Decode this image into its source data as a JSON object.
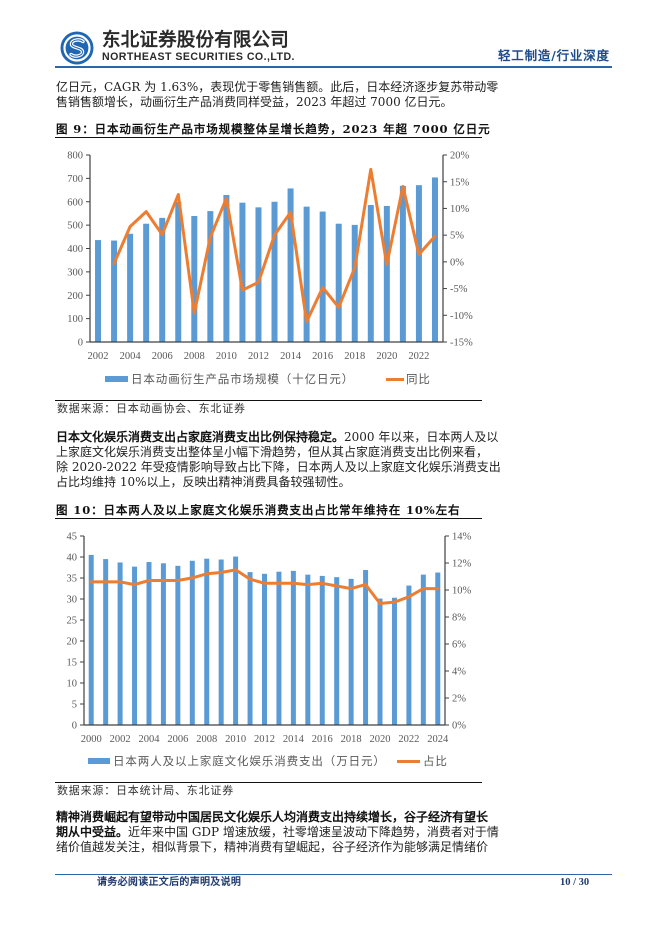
{
  "header": {
    "logo_icon": "northeast-securities-logo",
    "company_cn": "东北证券股份有限公司",
    "company_en": "NORTHEAST SECURITIES CO.,LTD.",
    "section": "轻工制造/行业深度",
    "brand_color": "#2a66a8"
  },
  "paragraphs": [
    {
      "lines": [
        {
          "bold": "",
          "text": "亿日元，CAGR 为 1.63%，表现优于零售销售额。此后，日本经济逐步复苏带动零"
        },
        {
          "bold": "",
          "text": "售销售额增长，动画衍生产品消费同样受益，2023 年超过 7000 亿日元。"
        }
      ]
    },
    {
      "lines": [
        {
          "bold": "日本文化娱乐消费支出占家庭消费支出比例保持稳定。",
          "text": "2000 年以来，日本两人及以"
        },
        {
          "bold": "",
          "text": "上家庭文化娱乐消费支出整体呈小幅下滑趋势，但从其占家庭消费支出比例来看，"
        },
        {
          "bold": "",
          "text": "除 2020-2022 年受疫情影响导致占比下降，日本两人及以上家庭文化娱乐消费支出"
        },
        {
          "bold": "",
          "text": "占比均维持 10%以上，反映出精神消费具备较强韧性。"
        }
      ]
    },
    {
      "lines": [
        {
          "bold": "精神消费崛起有望带动中国居民文化娱乐人均消费支出持续增长，谷子经济有望长",
          "text": ""
        },
        {
          "bold": "期从中受益。",
          "text": "近年来中国 GDP 增速放缓，社零增速呈波动下降趋势，消费者对于情"
        },
        {
          "bold": "",
          "text": "绪价值越发关注，相似背景下，精神消费有望崛起，谷子经济作为能够满足情绪价"
        }
      ]
    }
  ],
  "figures": [
    {
      "title": "图 9：日本动画衍生产品市场规模整体呈增长趋势，2023 年超 7000 亿日元",
      "legend": [
        "日本动画衍生产品市场规模（十亿日元）",
        "同比"
      ],
      "source": "数据来源：日本动画协会、东北证券"
    },
    {
      "title": "图 10：日本两人及以上家庭文化娱乐消费支出占比常年维持在 10%左右",
      "legend": [
        "日本两人及以上家庭文化娱乐消费支出（万日元）",
        "占比"
      ],
      "source": "数据来源：日本统计局、东北证券"
    }
  ],
  "footer": {
    "disclaimer": "请务必阅读正文后的声明及说明",
    "page": "10 / 30"
  },
  "chart_data": [
    {
      "type": "bar+line",
      "title": "图 9：日本动画衍生产品市场规模整体呈增长趋势，2023 年超 7000 亿日元",
      "categories": [
        "2002",
        "2003",
        "2004",
        "2005",
        "2006",
        "2007",
        "2008",
        "2009",
        "2010",
        "2011",
        "2012",
        "2013",
        "2014",
        "2015",
        "2016",
        "2017",
        "2018",
        "2019",
        "2020",
        "2021",
        "2022",
        "2023"
      ],
      "xtick_every": 2,
      "series": [
        {
          "name": "日本动画衍生产品市场规模（十亿日元）",
          "type": "bar",
          "axis": "left",
          "color": "#5b9bd5",
          "values": [
            436,
            434,
            463,
            506,
            531,
            600,
            539,
            560,
            629,
            596,
            576,
            600,
            657,
            579,
            558,
            506,
            501,
            586,
            582,
            668,
            671,
            704
          ]
        },
        {
          "name": "同比",
          "type": "line",
          "axis": "right",
          "color": "#ed7d31",
          "unit": "%",
          "values": [
            null,
            -0.3,
            6.6,
            9.4,
            5.1,
            12.6,
            -9.6,
            4.6,
            11.9,
            -5.3,
            -3.8,
            5.0,
            9.3,
            -11.2,
            -4.8,
            -8.5,
            -1.1,
            17.3,
            -0.5,
            14.1,
            1.4,
            4.8
          ]
        }
      ],
      "y_left": {
        "min": 0,
        "max": 800,
        "step": 100,
        "format": "{v}"
      },
      "y_right": {
        "min": -15,
        "max": 20,
        "step": 5,
        "format": "{v}%"
      },
      "xlabel": "",
      "ylabel": "",
      "grid": false,
      "legend_position": "bottom"
    },
    {
      "type": "bar+line",
      "title": "图 10：日本两人及以上家庭文化娱乐消费支出占比常年维持在 10%左右",
      "categories": [
        "2000",
        "2001",
        "2002",
        "2003",
        "2004",
        "2005",
        "2006",
        "2007",
        "2008",
        "2009",
        "2010",
        "2011",
        "2012",
        "2013",
        "2014",
        "2015",
        "2016",
        "2017",
        "2018",
        "2019",
        "2020",
        "2021",
        "2022",
        "2023",
        "2024"
      ],
      "xtick_every": 2,
      "series": [
        {
          "name": "日本两人及以上家庭文化娱乐消费支出（万日元）",
          "type": "bar",
          "axis": "left",
          "color": "#5b9bd5",
          "values": [
            40.5,
            39.5,
            38.7,
            37.7,
            38.8,
            38.5,
            37.9,
            39.1,
            39.6,
            39.4,
            40.1,
            36.4,
            36.0,
            36.5,
            36.7,
            35.8,
            35.5,
            35.2,
            34.8,
            36.9,
            30.1,
            30.3,
            33.2,
            35.8,
            36.3
          ]
        },
        {
          "name": "占比",
          "type": "line",
          "axis": "right",
          "color": "#ed7d31",
          "unit": "%",
          "values": [
            10.6,
            10.6,
            10.6,
            10.4,
            10.7,
            10.7,
            10.7,
            10.9,
            11.2,
            11.3,
            11.5,
            10.8,
            10.5,
            10.5,
            10.5,
            10.4,
            10.5,
            10.3,
            10.1,
            10.4,
            9.0,
            9.1,
            9.5,
            10.1,
            10.1
          ]
        }
      ],
      "y_left": {
        "min": 0,
        "max": 45,
        "step": 5,
        "format": "{v}"
      },
      "y_right": {
        "min": 0,
        "max": 14,
        "step": 2,
        "format": "{v}%"
      },
      "xlabel": "",
      "ylabel": "",
      "grid": false,
      "legend_position": "bottom"
    }
  ]
}
